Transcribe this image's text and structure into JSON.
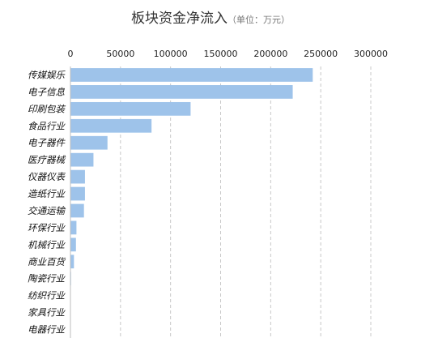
{
  "chart_data": {
    "type": "bar",
    "orientation": "horizontal",
    "title": "板块资金净流入",
    "subtitle": "（单位：万元）",
    "xlabel": "",
    "ylabel": "",
    "xlim": [
      0,
      300000
    ],
    "ticks": [
      "0",
      "50000",
      "100000",
      "150000",
      "200000",
      "250000",
      "300000"
    ],
    "tick_values": [
      0,
      50000,
      100000,
      150000,
      200000,
      250000,
      300000
    ],
    "grid": "dashed vertical",
    "axis_position": "top",
    "bar_color": "#9ec3ea",
    "categories": [
      "传媒娱乐",
      "电子信息",
      "印刷包装",
      "食品行业",
      "电子器件",
      "医疗器械",
      "仪器仪表",
      "造纸行业",
      "交通运输",
      "环保行业",
      "机械行业",
      "商业百货",
      "陶瓷行业",
      "纺织行业",
      "家具行业",
      "电器行业"
    ],
    "values": [
      242000,
      222000,
      120000,
      81000,
      37000,
      23000,
      14500,
      14500,
      13500,
      6000,
      5500,
      3500,
      600,
      400,
      300,
      200
    ]
  }
}
